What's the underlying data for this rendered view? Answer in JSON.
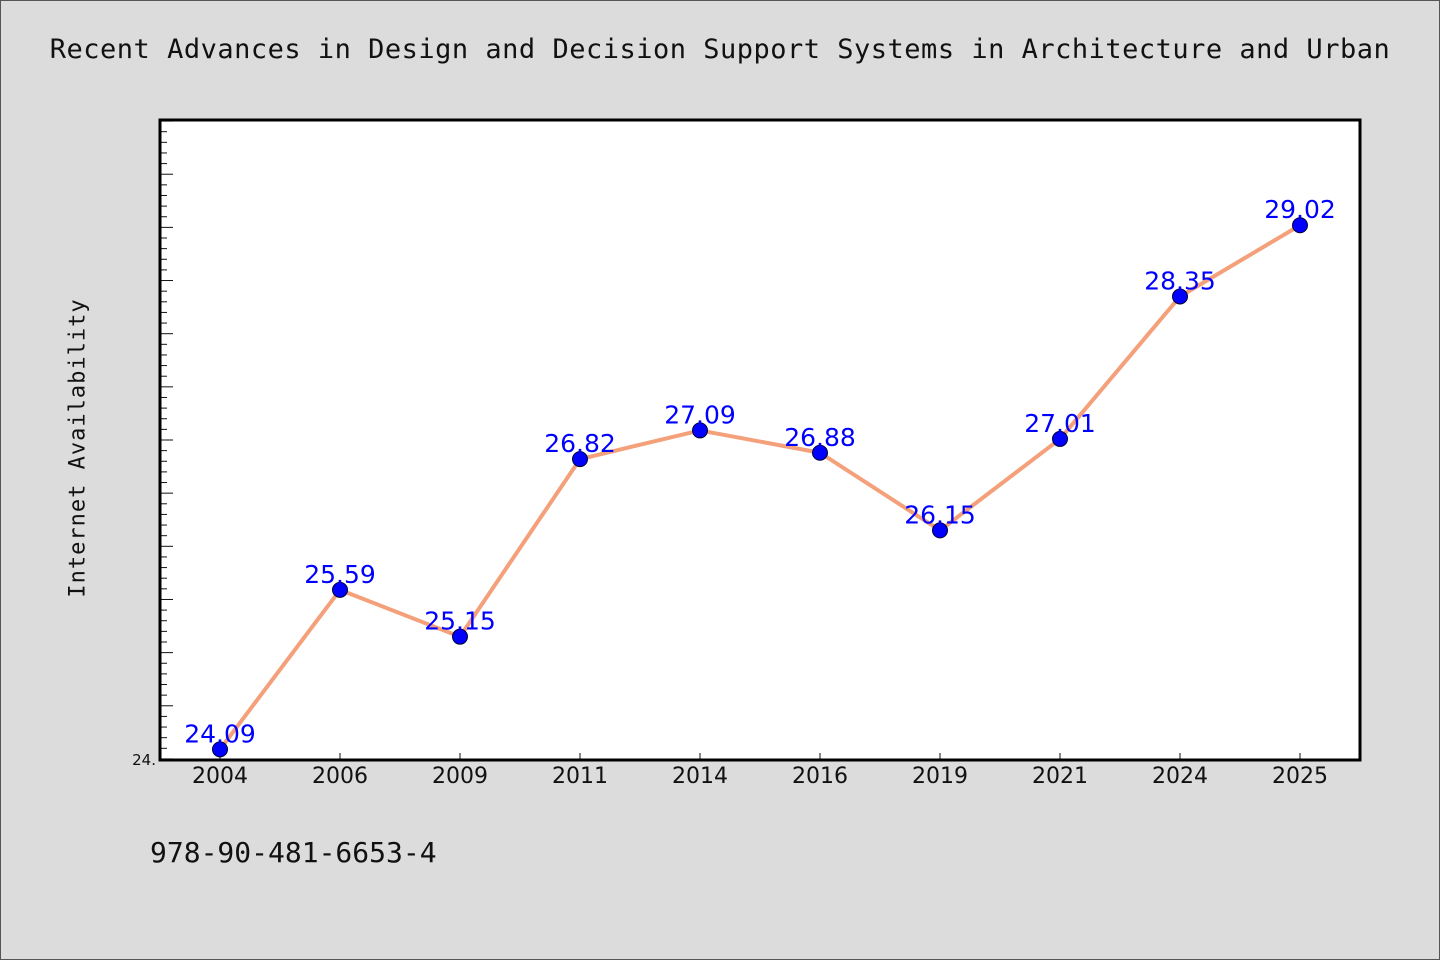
{
  "chart_data": {
    "type": "line",
    "title": "Recent Advances in Design and Decision Support Systems in Architecture and Urban",
    "ylabel": "Internet Availability",
    "xlabel": "",
    "categories": [
      "2004",
      "2006",
      "2009",
      "2011",
      "2014",
      "2016",
      "2019",
      "2021",
      "2024",
      "2025"
    ],
    "series": [
      {
        "values": [
          24.09,
          25.59,
          25.15,
          26.82,
          27.09,
          26.88,
          26.15,
          27.01,
          28.35,
          29.02
        ]
      }
    ],
    "data_labels": [
      "24.09",
      "25.59",
      "25.15",
      "26.82",
      "27.09",
      "26.88",
      "26.15",
      "27.01",
      "28.35",
      "29.02"
    ],
    "y_tick_labels": [
      "24."
    ],
    "ylim": [
      23.99,
      30.01
    ],
    "grid": false,
    "colors": {
      "line": "#f4a07a",
      "marker": "#0000ff",
      "label": "#0000ff",
      "background": "#dcdcdc",
      "plot_background": "#ffffff"
    }
  },
  "footnote": "978-90-481-6653-4"
}
